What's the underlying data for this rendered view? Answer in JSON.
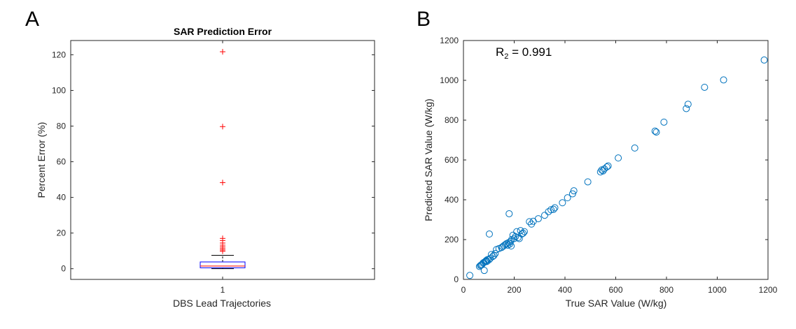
{
  "panels": {
    "a": {
      "letter": "A"
    },
    "b": {
      "letter": "B"
    }
  },
  "chart_data": [
    {
      "type": "box",
      "title": "SAR Prediction Error",
      "xlabel": "DBS Lead Trajectories",
      "ylabel": "Percent Error (%)",
      "categories": [
        "1"
      ],
      "ylim": [
        -6,
        128
      ],
      "yticks": [
        0,
        20,
        40,
        60,
        80,
        100,
        120
      ],
      "box": {
        "q1": 0.5,
        "median": 1.5,
        "q3": 3.8,
        "whisker_low": 0,
        "whisker_high": 7.5
      },
      "outliers": [
        9.8,
        10.5,
        11.3,
        12.2,
        13.2,
        14.4,
        15.8,
        17.0,
        48.3,
        79.7,
        121.7
      ],
      "colors": {
        "box": "#0000ff",
        "median": "#ff0000",
        "outlier": "#ff0000",
        "whisker": "#000000"
      }
    },
    {
      "type": "scatter",
      "xlabel": "True SAR Value (W/kg)",
      "ylabel": "Predicted SAR Value (W/kg)",
      "xlim": [
        0,
        1200
      ],
      "ylim": [
        0,
        1200
      ],
      "xticks": [
        0,
        200,
        400,
        600,
        800,
        1000,
        1200
      ],
      "yticks": [
        0,
        200,
        400,
        600,
        800,
        1000,
        1200
      ],
      "annotation": {
        "prefix": "R",
        "subscript": "2",
        "suffix": " = 0.991"
      },
      "marker_color": "#0072bd",
      "x": [
        25,
        63,
        67,
        70,
        73,
        77,
        80,
        82,
        85,
        88,
        90,
        92,
        95,
        100,
        102,
        105,
        110,
        115,
        120,
        125,
        130,
        140,
        150,
        155,
        160,
        165,
        170,
        175,
        178,
        180,
        183,
        185,
        188,
        190,
        195,
        200,
        205,
        210,
        215,
        220,
        225,
        230,
        235,
        240,
        260,
        268,
        275,
        295,
        320,
        335,
        345,
        355,
        360,
        390,
        410,
        430,
        435,
        490,
        540,
        545,
        550,
        555,
        565,
        570,
        610,
        675,
        755,
        760,
        790,
        878,
        885,
        950,
        1025,
        1185
      ],
      "y": [
        20,
        65,
        70,
        72,
        75,
        82,
        85,
        45,
        88,
        92,
        95,
        90,
        100,
        98,
        228,
        105,
        125,
        115,
        120,
        130,
        150,
        155,
        160,
        165,
        170,
        175,
        180,
        172,
        185,
        330,
        178,
        190,
        168,
        200,
        222,
        205,
        215,
        240,
        210,
        205,
        245,
        228,
        232,
        240,
        290,
        278,
        292,
        305,
        322,
        340,
        350,
        352,
        360,
        385,
        410,
        430,
        445,
        490,
        540,
        550,
        545,
        555,
        565,
        570,
        610,
        660,
        745,
        740,
        790,
        858,
        880,
        965,
        1002,
        1102
      ]
    }
  ]
}
